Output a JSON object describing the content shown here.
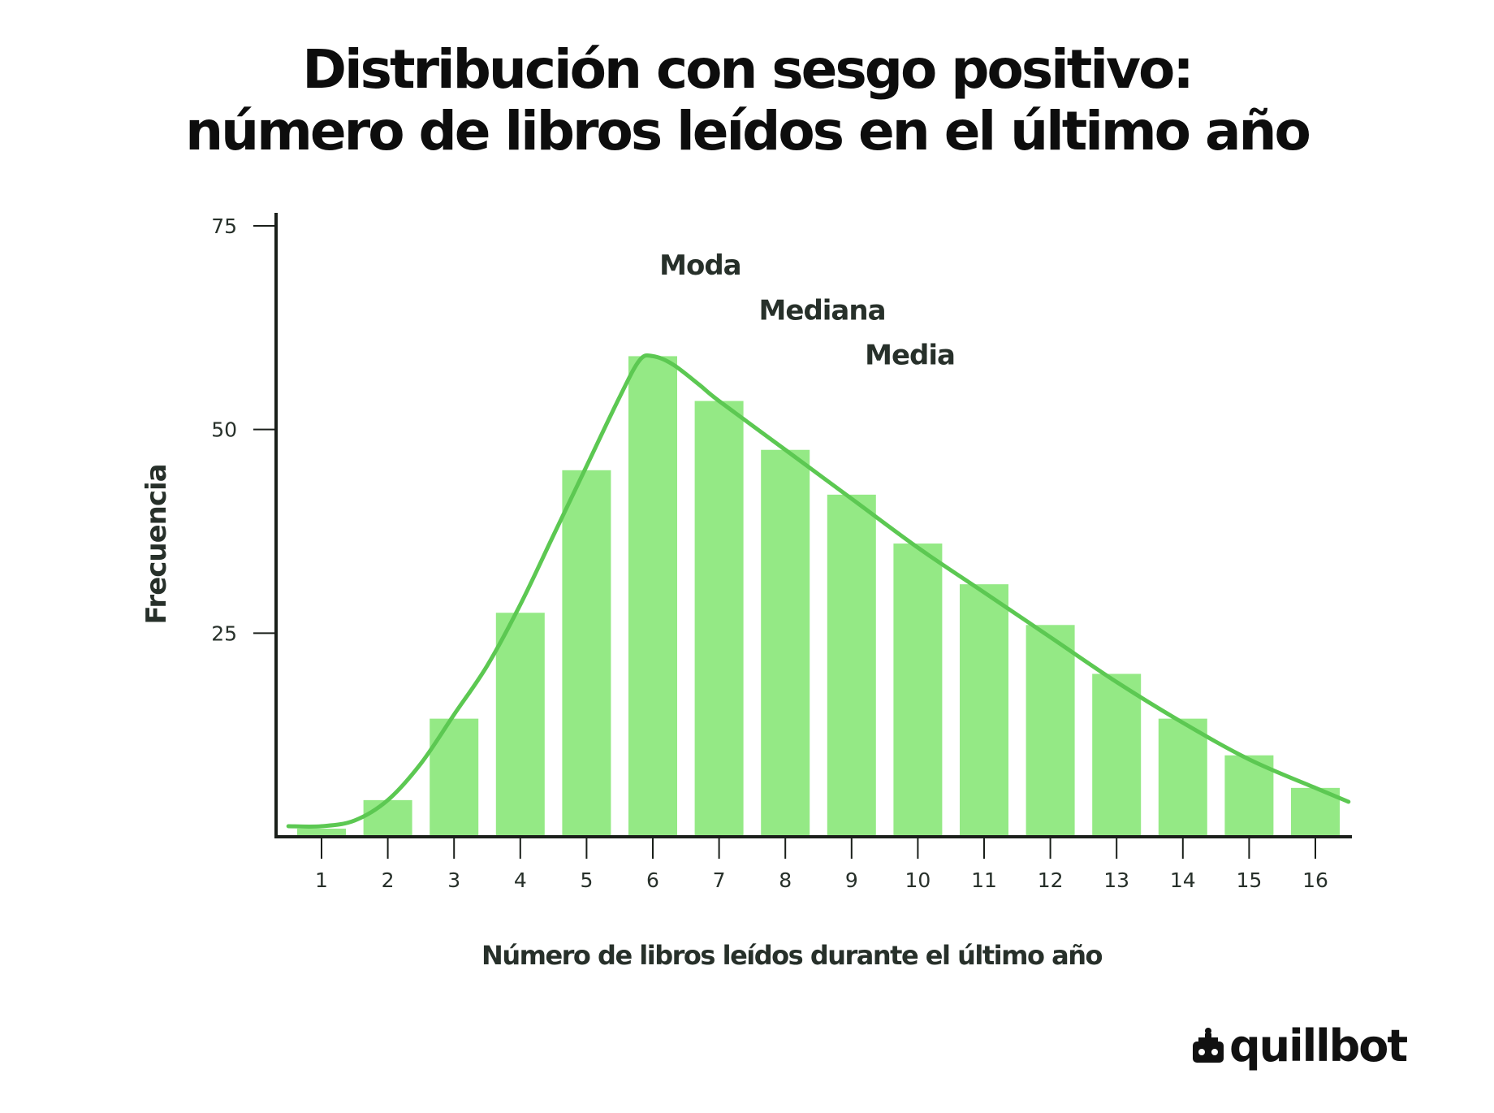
{
  "title": {
    "line1": "Distribución con sesgo positivo:",
    "line2": "número de libros leídos en el último año"
  },
  "brand": {
    "name": "quillbot",
    "icon": "robot-icon"
  },
  "colors": {
    "bar": "#94e985",
    "curve": "#5cc852",
    "axis": "#1a1f1a",
    "label": "#27302a",
    "title": "#0d0d0d"
  },
  "chart_data": {
    "type": "bar",
    "xlabel": "Número de libros leídos durante el último año",
    "ylabel": "Frecuencia",
    "categories": [
      "1",
      "2",
      "3",
      "4",
      "5",
      "6",
      "7",
      "8",
      "9",
      "10",
      "11",
      "12",
      "13",
      "14",
      "15",
      "16"
    ],
    "values": [
      1,
      4.5,
      14.5,
      27.5,
      45,
      59,
      53.5,
      47.5,
      42,
      36,
      31,
      26,
      20,
      14.5,
      10,
      6
    ],
    "ylim": [
      0,
      75
    ],
    "yticks": [
      25,
      50,
      75
    ],
    "grid": false,
    "curve": {
      "type": "line",
      "x": [
        0.5,
        1,
        1.5,
        2,
        2.5,
        3,
        3.5,
        4,
        4.5,
        5,
        5.5,
        5.8,
        6,
        6.3,
        6.7,
        7,
        8,
        9,
        10,
        11,
        12,
        13,
        14,
        15,
        16,
        16.5
      ],
      "y": [
        1.3,
        1.3,
        2.0,
        4.5,
        9.0,
        15.0,
        21.0,
        28.5,
        37.0,
        45.5,
        54.0,
        58.5,
        59.0,
        58.0,
        55.5,
        53.5,
        47.5,
        41.5,
        35.5,
        30.0,
        24.5,
        19.0,
        14.0,
        9.5,
        6.0,
        4.3
      ]
    },
    "annotations": [
      {
        "text": "Moda",
        "x": 6.1,
        "y": 69
      },
      {
        "text": "Mediana",
        "x": 7.6,
        "y": 63.5
      },
      {
        "text": "Media",
        "x": 9.2,
        "y": 58
      }
    ]
  }
}
